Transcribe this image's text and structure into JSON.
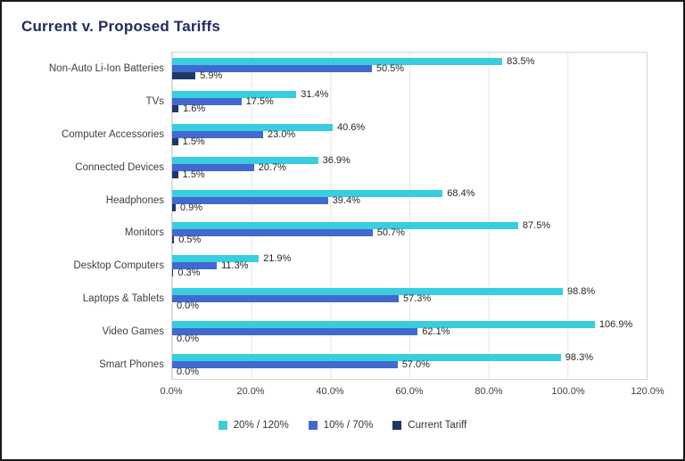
{
  "page": {
    "title": "Current v. Proposed Tariffs"
  },
  "colors": {
    "title_text": "#232A60",
    "axis_text": "#3f3f3f",
    "value_text": "#262626",
    "gridline": "#e4e4e4",
    "plot_border": "#d6d6d6",
    "frame_border": "#1a1a1a"
  },
  "chart_data": {
    "type": "bar",
    "orientation": "horizontal",
    "title": "Current v. Proposed Tariffs",
    "categories": [
      "Non-Auto Li-Ion Batteries",
      "TVs",
      "Computer Accessories",
      "Connected Devices",
      "Headphones",
      "Monitors",
      "Desktop Computers",
      "Laptops & Tablets",
      "Video Games",
      "Smart Phones"
    ],
    "series": [
      {
        "name": "20% / 120%",
        "color": "#38CEDF",
        "values": [
          83.5,
          31.4,
          40.6,
          36.9,
          68.4,
          87.5,
          21.9,
          98.8,
          106.9,
          98.3
        ]
      },
      {
        "name": "10% / 70%",
        "color": "#4169CF",
        "values": [
          50.5,
          17.5,
          23.0,
          20.7,
          39.4,
          50.7,
          11.3,
          57.3,
          62.1,
          57.0
        ]
      },
      {
        "name": "Current Tariff",
        "color": "#1F3864",
        "values": [
          5.9,
          1.6,
          1.5,
          1.5,
          0.9,
          0.5,
          0.3,
          0.0,
          0.0,
          0.0
        ]
      }
    ],
    "xmin": 0,
    "xmax": 120,
    "x_ticks": [
      "0.0%",
      "20.0%",
      "40.0%",
      "60.0%",
      "80.0%",
      "100.0%",
      "120.0%"
    ],
    "grid": true,
    "legend_position": "bottom",
    "value_labels": true,
    "value_label_format": "one-decimal-percent"
  }
}
